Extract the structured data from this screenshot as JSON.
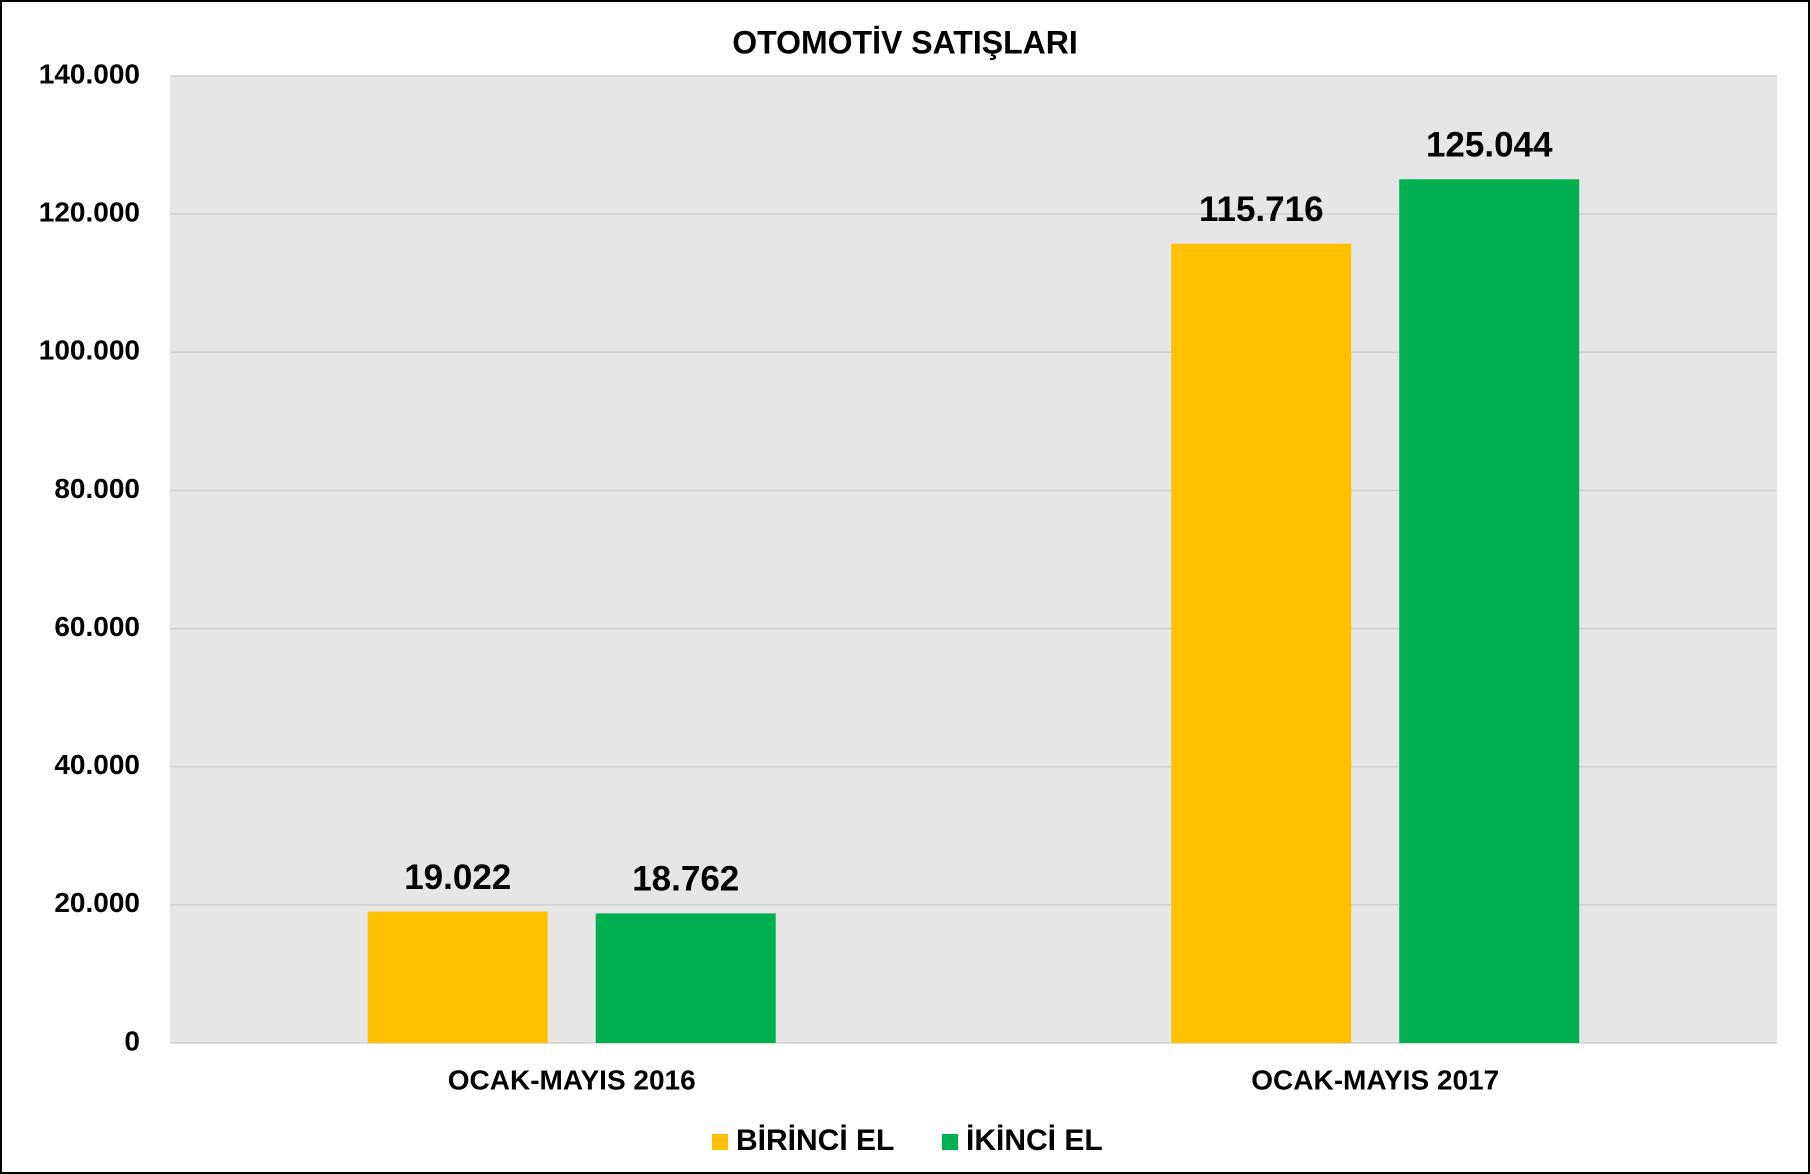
{
  "chart_data": {
    "type": "bar",
    "title": "OTOMOTİV SATIŞLARI",
    "categories": [
      "OCAK-MAYIS 2016",
      "OCAK-MAYIS 2017"
    ],
    "series": [
      {
        "name": "BİRİNCİ EL",
        "color": "#ffc000",
        "values": [
          19022,
          115716
        ],
        "value_labels": [
          "19.022",
          "115.716"
        ]
      },
      {
        "name": "İKİNCİ EL",
        "color": "#00b050",
        "values": [
          18762,
          125044
        ],
        "value_labels": [
          "18.762",
          "125.044"
        ]
      }
    ],
    "ylim": [
      0,
      140000
    ],
    "yticks": [
      0,
      {
        "value": 20000,
        "label": "20.000"
      },
      {
        "value": 40000,
        "label": "40.000"
      },
      {
        "value": 60000,
        "label": "60.000"
      },
      {
        "value": 80000,
        "label": "80.000"
      },
      {
        "value": 100000,
        "label": "100.000"
      },
      {
        "value": 120000,
        "label": "120.000"
      },
      {
        "value": 140000,
        "label": "140.000"
      }
    ],
    "grid": true,
    "legend": "bottom"
  }
}
